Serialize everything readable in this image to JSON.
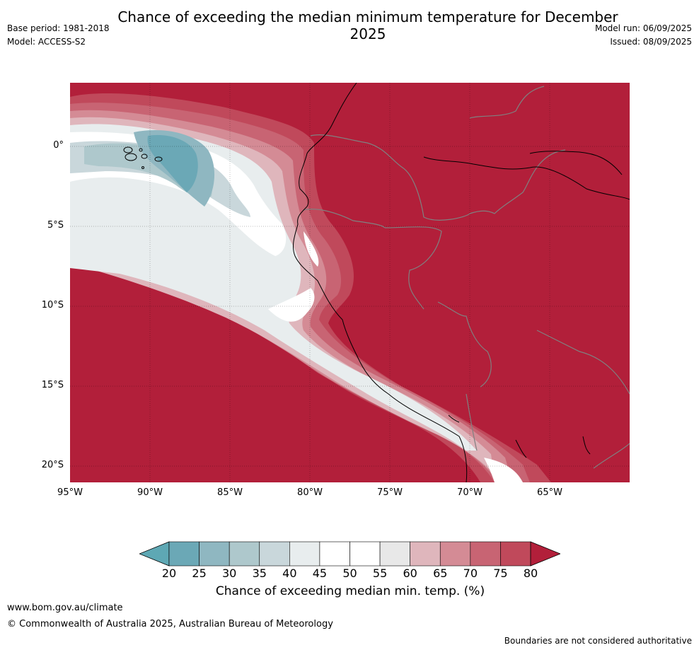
{
  "title": "Chance of exceeding the median minimum temperature for December 2025",
  "meta_left": [
    "Base period: 1981-2018",
    "Model: ACCESS-S2"
  ],
  "meta_right": [
    "Model run: 06/09/2025",
    "Issued: 08/09/2025"
  ],
  "map": {
    "lat_labels": [
      "0°",
      "5°S",
      "10°S",
      "15°S",
      "20°S"
    ],
    "lon_labels": [
      "95°W",
      "90°W",
      "85°W",
      "80°W",
      "75°W",
      "70°W",
      "65°W"
    ],
    "colors": {
      "dominant": "#b21f3a",
      "coastline": "#000000",
      "border": "#808080"
    }
  },
  "colorbar": {
    "label": "Chance of exceeding median min. temp. (%)",
    "ticks": [
      "20",
      "25",
      "30",
      "35",
      "40",
      "45",
      "50",
      "55",
      "60",
      "65",
      "70",
      "75",
      "80"
    ],
    "colors": [
      "#5ea8b4",
      "#6ba8b6",
      "#8fb7c1",
      "#aec8cc",
      "#c9d7db",
      "#e8edee",
      "#ffffff",
      "#ffffff",
      "#e8e8e8",
      "#dfb6bc",
      "#d48b95",
      "#c86473",
      "#c0495b",
      "#b21f3a"
    ]
  },
  "footer": {
    "url": "www.bom.gov.au/climate",
    "copyright": "© Commonwealth of Australia 2025, Australian Bureau of Meteorology",
    "note": "Boundaries are not considered authoritative"
  }
}
